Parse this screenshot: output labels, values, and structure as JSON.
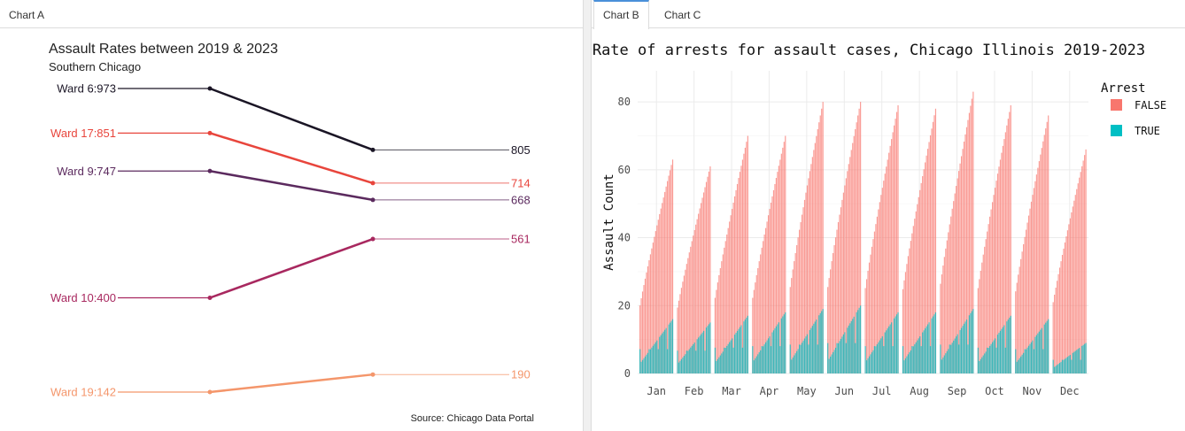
{
  "left_panel": {
    "tabs": [
      {
        "label": "Chart A"
      }
    ]
  },
  "right_panel": {
    "tabs": [
      {
        "label": "Chart B",
        "active": true
      },
      {
        "label": "Chart C",
        "active": false
      }
    ]
  },
  "chart_data": [
    {
      "type": "line",
      "title": "Assault Rates between 2019 & 2023",
      "subtitle": "Southern Chicago",
      "caption": "Source: Chicago Data Portal",
      "x": [
        "2019",
        "2023"
      ],
      "ylim": [
        100,
        1000
      ],
      "series": [
        {
          "name": "Ward 6",
          "start_label": "Ward 6:973",
          "end_label": "805",
          "values": [
            973,
            805
          ],
          "color": "#1a1525"
        },
        {
          "name": "Ward 17",
          "start_label": "Ward 17:851",
          "end_label": "714",
          "values": [
            851,
            714
          ],
          "color": "#e8453c"
        },
        {
          "name": "Ward 9",
          "start_label": "Ward 9:747",
          "end_label": "668",
          "values": [
            747,
            668
          ],
          "color": "#5b2a5e"
        },
        {
          "name": "Ward 10",
          "start_label": "Ward 10:400",
          "end_label": "561",
          "values": [
            400,
            561
          ],
          "color": "#a8285f"
        },
        {
          "name": "Ward 19",
          "start_label": "Ward 19:142",
          "end_label": "190",
          "values": [
            142,
            190
          ],
          "color": "#f4966b"
        }
      ]
    },
    {
      "type": "bar",
      "title": "Rate of arrests for assault cases, Chicago Illinois 2019-2023",
      "xlabel": "",
      "ylabel": "Assault Count",
      "ylim": [
        0,
        88
      ],
      "yticks": [
        0,
        20,
        40,
        60,
        80
      ],
      "categories": [
        "Jan",
        "Feb",
        "Mar",
        "Apr",
        "May",
        "Jun",
        "Jul",
        "Aug",
        "Sep",
        "Oct",
        "Nov",
        "Dec"
      ],
      "legend": {
        "title": "Arrest",
        "position": "right"
      },
      "series": [
        {
          "name": "FALSE",
          "color": "#f8766d",
          "values": [
            63,
            61,
            70,
            70,
            80,
            80,
            79,
            78,
            83,
            79,
            76,
            66
          ]
        },
        {
          "name": "TRUE",
          "color": "#00bfc4",
          "values": [
            16,
            15,
            17,
            18,
            19,
            20,
            18,
            18,
            19,
            17,
            16,
            9
          ]
        }
      ],
      "grid": true
    }
  ]
}
